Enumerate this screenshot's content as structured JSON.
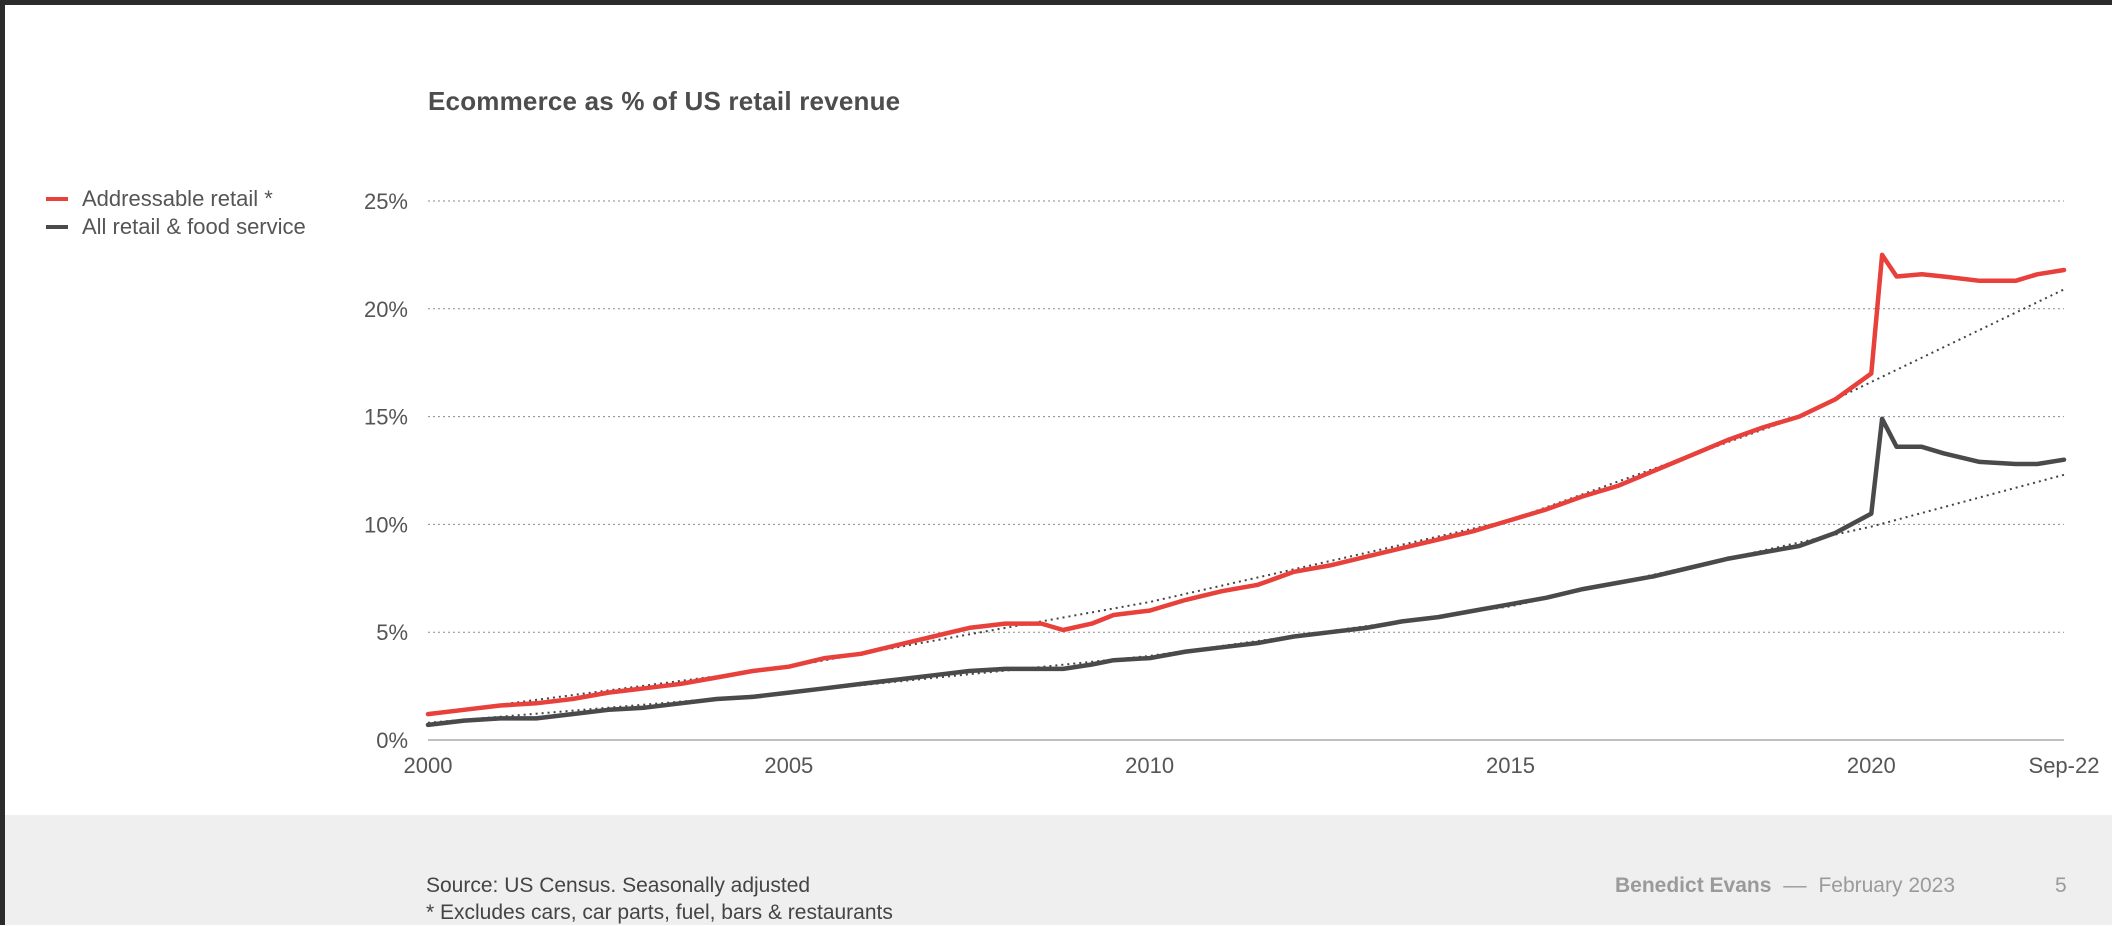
{
  "title": "Ecommerce as % of US retail revenue",
  "legend": {
    "items": [
      {
        "label": "Addressable retail *",
        "color": "#e8403b"
      },
      {
        "label": "All retail & food service",
        "color": "#4a4a4c"
      }
    ]
  },
  "footer": {
    "source_line1": "Source: US Census. Seasonally adjusted",
    "source_line2": "* Excludes cars, car parts, fuel, bars & restaurants",
    "author": "Benedict Evans",
    "separator": "––",
    "date": "February 2023",
    "page": "5"
  },
  "chart_data": {
    "type": "line",
    "title": "Ecommerce as % of US retail revenue",
    "xlabel": "",
    "ylabel": "",
    "x_range": [
      2000.0,
      2022.67
    ],
    "ylim": [
      0,
      25
    ],
    "y_ticks": [
      0,
      5,
      10,
      15,
      20,
      25
    ],
    "y_tick_labels": [
      "0%",
      "5%",
      "10%",
      "15%",
      "20%",
      "25%"
    ],
    "x_ticks": [
      2000,
      2005,
      2010,
      2015,
      2020,
      2022.67
    ],
    "x_tick_labels": [
      "2000",
      "2005",
      "2010",
      "2015",
      "2020",
      "Sep-22"
    ],
    "grid": "horizontal dotted",
    "legend_position": "top-left",
    "series": [
      {
        "name": "Addressable retail *",
        "color": "#e8403b",
        "points": [
          [
            2000.0,
            1.2
          ],
          [
            2000.5,
            1.4
          ],
          [
            2001.0,
            1.6
          ],
          [
            2001.5,
            1.7
          ],
          [
            2002.0,
            1.9
          ],
          [
            2002.5,
            2.2
          ],
          [
            2003.0,
            2.4
          ],
          [
            2003.5,
            2.6
          ],
          [
            2004.0,
            2.9
          ],
          [
            2004.5,
            3.2
          ],
          [
            2005.0,
            3.4
          ],
          [
            2005.5,
            3.8
          ],
          [
            2006.0,
            4.0
          ],
          [
            2006.5,
            4.4
          ],
          [
            2007.0,
            4.8
          ],
          [
            2007.5,
            5.2
          ],
          [
            2008.0,
            5.4
          ],
          [
            2008.5,
            5.4
          ],
          [
            2008.8,
            5.1
          ],
          [
            2009.2,
            5.4
          ],
          [
            2009.5,
            5.8
          ],
          [
            2010.0,
            6.0
          ],
          [
            2010.5,
            6.5
          ],
          [
            2011.0,
            6.9
          ],
          [
            2011.5,
            7.2
          ],
          [
            2012.0,
            7.8
          ],
          [
            2012.5,
            8.1
          ],
          [
            2013.0,
            8.5
          ],
          [
            2013.5,
            8.9
          ],
          [
            2014.0,
            9.3
          ],
          [
            2014.5,
            9.7
          ],
          [
            2015.0,
            10.2
          ],
          [
            2015.5,
            10.7
          ],
          [
            2016.0,
            11.3
          ],
          [
            2016.5,
            11.8
          ],
          [
            2017.0,
            12.5
          ],
          [
            2017.5,
            13.2
          ],
          [
            2018.0,
            13.9
          ],
          [
            2018.5,
            14.5
          ],
          [
            2019.0,
            15.0
          ],
          [
            2019.5,
            15.8
          ],
          [
            2020.0,
            17.0
          ],
          [
            2020.15,
            22.5
          ],
          [
            2020.35,
            21.5
          ],
          [
            2020.7,
            21.6
          ],
          [
            2021.0,
            21.5
          ],
          [
            2021.5,
            21.3
          ],
          [
            2022.0,
            21.3
          ],
          [
            2022.3,
            21.6
          ],
          [
            2022.67,
            21.8
          ]
        ]
      },
      {
        "name": "All retail & food service",
        "color": "#4a4a4c",
        "points": [
          [
            2000.0,
            0.7
          ],
          [
            2000.5,
            0.9
          ],
          [
            2001.0,
            1.0
          ],
          [
            2001.5,
            1.0
          ],
          [
            2002.0,
            1.2
          ],
          [
            2002.5,
            1.4
          ],
          [
            2003.0,
            1.5
          ],
          [
            2003.5,
            1.7
          ],
          [
            2004.0,
            1.9
          ],
          [
            2004.5,
            2.0
          ],
          [
            2005.0,
            2.2
          ],
          [
            2005.5,
            2.4
          ],
          [
            2006.0,
            2.6
          ],
          [
            2006.5,
            2.8
          ],
          [
            2007.0,
            3.0
          ],
          [
            2007.5,
            3.2
          ],
          [
            2008.0,
            3.3
          ],
          [
            2008.5,
            3.3
          ],
          [
            2008.8,
            3.3
          ],
          [
            2009.2,
            3.5
          ],
          [
            2009.5,
            3.7
          ],
          [
            2010.0,
            3.8
          ],
          [
            2010.5,
            4.1
          ],
          [
            2011.0,
            4.3
          ],
          [
            2011.5,
            4.5
          ],
          [
            2012.0,
            4.8
          ],
          [
            2012.5,
            5.0
          ],
          [
            2013.0,
            5.2
          ],
          [
            2013.5,
            5.5
          ],
          [
            2014.0,
            5.7
          ],
          [
            2014.5,
            6.0
          ],
          [
            2015.0,
            6.3
          ],
          [
            2015.5,
            6.6
          ],
          [
            2016.0,
            7.0
          ],
          [
            2016.5,
            7.3
          ],
          [
            2017.0,
            7.6
          ],
          [
            2017.5,
            8.0
          ],
          [
            2018.0,
            8.4
          ],
          [
            2018.5,
            8.7
          ],
          [
            2019.0,
            9.0
          ],
          [
            2019.5,
            9.6
          ],
          [
            2020.0,
            10.5
          ],
          [
            2020.15,
            14.9
          ],
          [
            2020.35,
            13.6
          ],
          [
            2020.7,
            13.6
          ],
          [
            2021.0,
            13.3
          ],
          [
            2021.5,
            12.9
          ],
          [
            2022.0,
            12.8
          ],
          [
            2022.3,
            12.8
          ],
          [
            2022.67,
            13.0
          ]
        ]
      }
    ],
    "trendlines": [
      {
        "for": "Addressable retail *",
        "style": "dotted",
        "points": [
          [
            2000.0,
            1.2
          ],
          [
            2005.0,
            3.4
          ],
          [
            2010.0,
            6.4
          ],
          [
            2015.0,
            10.2
          ],
          [
            2019.0,
            15.0
          ],
          [
            2022.67,
            20.9
          ]
        ]
      },
      {
        "for": "All retail & food service",
        "style": "dotted",
        "points": [
          [
            2000.0,
            0.8
          ],
          [
            2005.0,
            2.2
          ],
          [
            2010.0,
            3.9
          ],
          [
            2015.0,
            6.2
          ],
          [
            2020.0,
            9.9
          ],
          [
            2022.67,
            12.3
          ]
        ]
      }
    ]
  }
}
